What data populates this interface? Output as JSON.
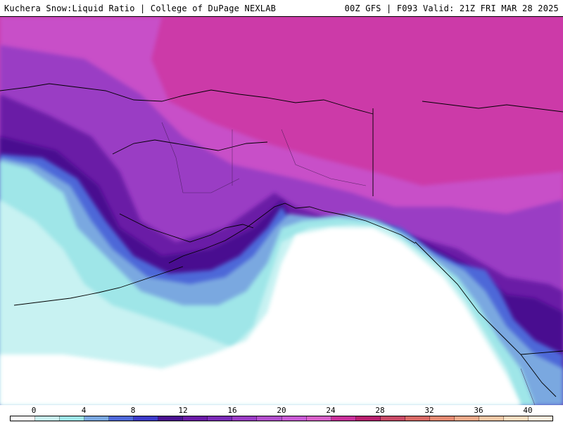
{
  "header": {
    "title_left": "Kuchera Snow:Liquid Ratio | College of DuPage NEXLAB",
    "title_right": "00Z GFS | F093 Valid: 21Z FRI MAR 28 2025"
  },
  "legend": {
    "ticks": [
      "0",
      "4",
      "8",
      "12",
      "16",
      "20",
      "24",
      "28",
      "32",
      "36",
      "40"
    ],
    "colors": [
      "#ffffff",
      "#c8f2f2",
      "#9fe6e8",
      "#7aa8e0",
      "#4e68d8",
      "#3c3ac8",
      "#4a1190",
      "#6a1aa6",
      "#7a2ab6",
      "#9a3cc4",
      "#b24ecc",
      "#c85ad4",
      "#d760c8",
      "#c8309a",
      "#b8206e",
      "#c84a66",
      "#d86a66",
      "#e48a72",
      "#eeaa8a",
      "#f4c8a6",
      "#f8dcc0",
      "#fbeedd"
    ]
  },
  "map": {
    "colors": {
      "background_magenta": "#cc3aa8",
      "deep_magenta": "#c4309a",
      "light_purple": "#b850c8",
      "medium_purple": "#9a3cc4",
      "dark_purple": "#6a1aa6",
      "deep_indigo": "#4a1190",
      "blue": "#4e68d8",
      "light_blue": "#7aa8e0",
      "cyan": "#9fe6e8",
      "pale_cyan": "#c8f2f2",
      "white": "#ffffff",
      "coastline": "#000000"
    }
  }
}
